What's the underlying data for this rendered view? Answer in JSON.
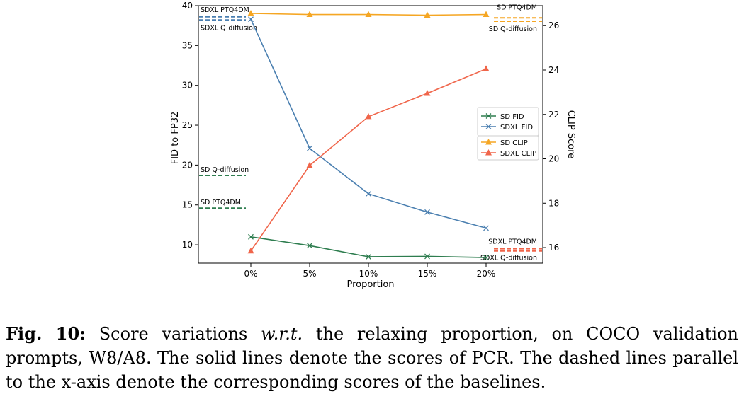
{
  "chart_data": {
    "type": "line",
    "xlabel": "Proportion",
    "ylabel_left": "FID to FP32",
    "ylabel_right": "CLIP Score",
    "categories": [
      "0%",
      "5%",
      "10%",
      "15%",
      "20%"
    ],
    "y_left": {
      "range": [
        7.7,
        40.0
      ],
      "ticks": [
        10,
        15,
        20,
        25,
        30,
        35,
        40
      ]
    },
    "y_right": {
      "range": [
        15.3,
        26.9
      ],
      "ticks": [
        16,
        18,
        20,
        22,
        24,
        26
      ]
    },
    "series": [
      {
        "name": "SD FID",
        "axis": "left",
        "color": "#2e7d4f",
        "marker": "x",
        "values": [
          11.0,
          9.9,
          8.5,
          8.55,
          8.4
        ]
      },
      {
        "name": "SDXL FID",
        "axis": "left",
        "color": "#4a7fb0",
        "marker": "x",
        "values": [
          38.3,
          22.1,
          16.4,
          14.1,
          12.1
        ]
      },
      {
        "name": "SD CLIP",
        "axis": "right",
        "color": "#f5a623",
        "marker": "triangle",
        "values": [
          26.55,
          26.5,
          26.5,
          26.47,
          26.5
        ]
      },
      {
        "name": "SDXL CLIP",
        "axis": "right",
        "color": "#f0654a",
        "marker": "triangle",
        "values": [
          15.85,
          19.7,
          21.9,
          22.95,
          24.05
        ]
      }
    ],
    "baselines": [
      {
        "label": "SDXL PTQ4DM",
        "axis": "left",
        "value": 38.6,
        "color": "#4a7fb0",
        "side": "left"
      },
      {
        "label": "SDXL Q-diffusion",
        "axis": "left",
        "value": 38.2,
        "color": "#4a7fb0",
        "side": "left"
      },
      {
        "label": "SD Q-diffusion",
        "axis": "left",
        "value": 18.7,
        "color": "#2e7d4f",
        "side": "left"
      },
      {
        "label": "SD PTQ4DM",
        "axis": "left",
        "value": 14.6,
        "color": "#2e7d4f",
        "side": "left"
      },
      {
        "label": "SD PTQ4DM",
        "axis": "right",
        "value": 26.35,
        "color": "#f5a623",
        "side": "right"
      },
      {
        "label": "SD Q-diffusion",
        "axis": "right",
        "value": 26.2,
        "color": "#f5a623",
        "side": "right"
      },
      {
        "label": "SDXL PTQ4DM",
        "axis": "right",
        "value": 15.95,
        "color": "#f0654a",
        "side": "right"
      },
      {
        "label": "SDXL Q-diffusion",
        "axis": "right",
        "value": 15.85,
        "color": "#f0654a",
        "side": "right"
      }
    ],
    "legend": {
      "placement": "center-right",
      "groups": [
        [
          "SD FID",
          "SDXL FID"
        ],
        [
          "SD CLIP",
          "SDXL CLIP"
        ]
      ]
    }
  },
  "caption": {
    "label": "Fig. 10:",
    "text_1": " Score variations ",
    "wrt": "w.r.t.",
    "text_2": " the relaxing proportion, on COCO validation prompts, W8/A8. The solid lines denote the scores of PCR. The dashed lines parallel to the x-axis denote the corresponding scores of the baselines."
  }
}
